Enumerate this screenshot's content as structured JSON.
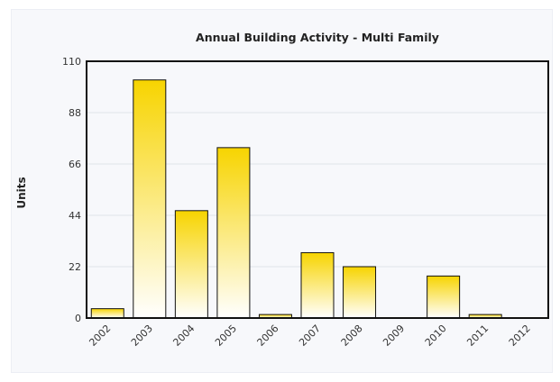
{
  "chart_data": {
    "type": "bar",
    "title": "Annual Building Activity - Multi Family",
    "xlabel": "",
    "ylabel": "Units",
    "categories": [
      "2002",
      "2003",
      "2004",
      "2005",
      "2006",
      "2007",
      "2008",
      "2009",
      "2010",
      "2011",
      "2012"
    ],
    "values": [
      4,
      102,
      46,
      73,
      1.5,
      28,
      22,
      0,
      18,
      1.5,
      0
    ],
    "ylim": [
      0,
      110
    ],
    "yticks": [
      "0",
      "22",
      "44",
      "66",
      "88",
      "110"
    ],
    "grid": true,
    "legend": "none",
    "colors": {
      "bar_top": "#f7d400",
      "bar_bottom": "#ffffff",
      "bar_outline": "#111111",
      "axis": "#111111",
      "grid": "#dfe3ea"
    }
  }
}
